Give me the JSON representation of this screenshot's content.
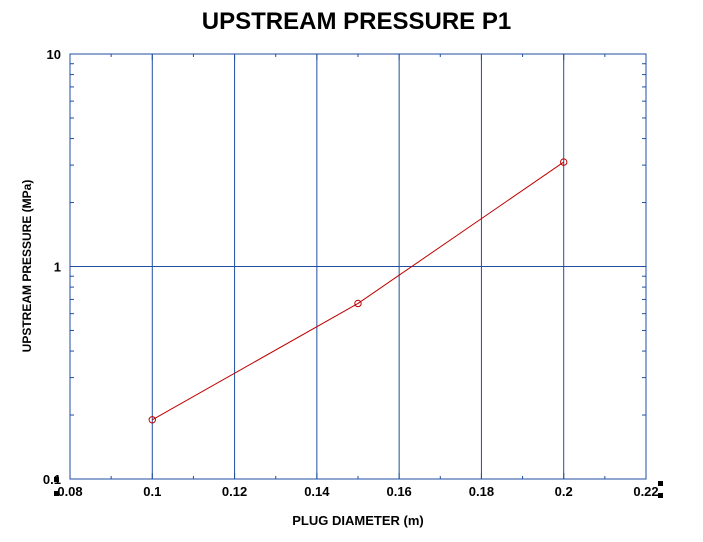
{
  "chart_data": {
    "type": "line",
    "title": "UPSTREAM PRESSURE P1",
    "xlabel": "PLUG DIAMETER (m)",
    "ylabel": "UPSTREAM PRESSURE (MPa)",
    "xlim": [
      0.08,
      0.22
    ],
    "ylim": [
      0.1,
      10
    ],
    "yscale": "log",
    "x_ticks": [
      "0.08",
      "0.1",
      "0.12",
      "0.14",
      "0.16",
      "0.18",
      "0.2",
      "0.22"
    ],
    "y_ticks": [
      "0.1",
      "1",
      "10"
    ],
    "grid": true,
    "series": [
      {
        "x": [
          0.1,
          0.15,
          0.2
        ],
        "y": [
          0.19,
          0.67,
          3.1
        ],
        "color": "#c00000",
        "marker": "circle"
      }
    ]
  },
  "colors": {
    "grid": "#1f4fa0",
    "line": "#c00000"
  }
}
